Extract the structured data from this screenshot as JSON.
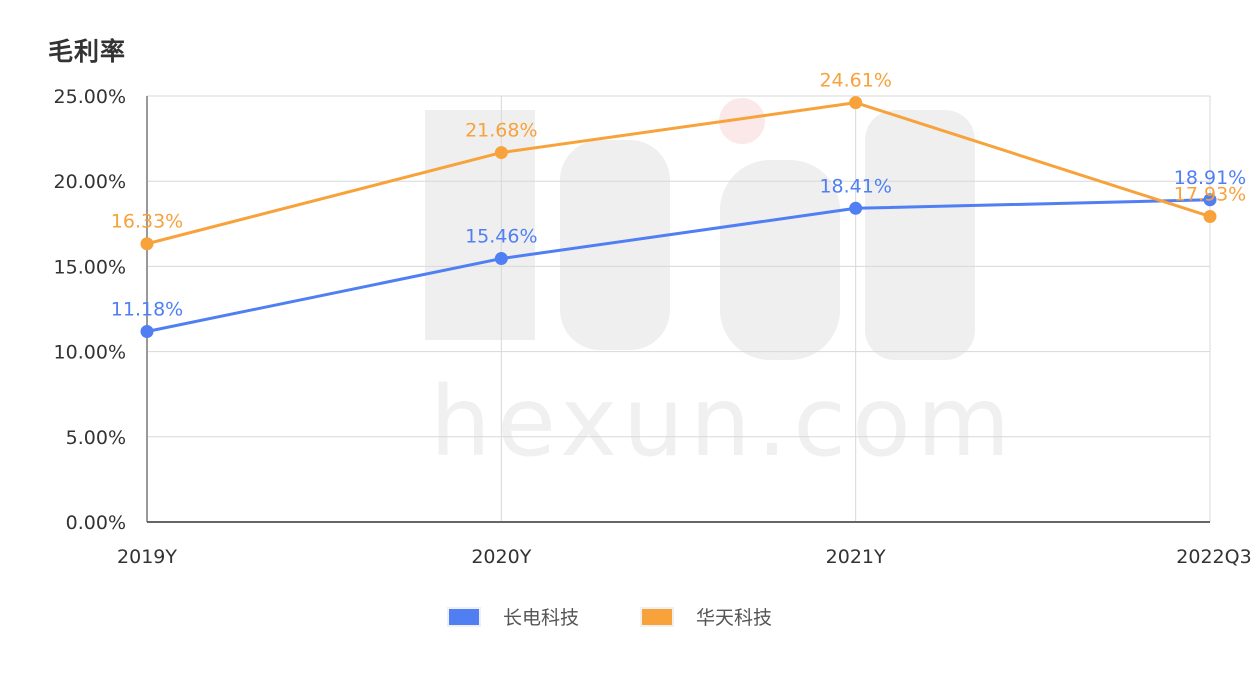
{
  "title": "毛利率",
  "colors": {
    "series1": "#4f7ff2",
    "series2": "#f7a23a",
    "grid": "#d8d8d8",
    "axis": "#666666",
    "tick_text": "#333333"
  },
  "watermark": {
    "text": "hexun.com"
  },
  "legend": [
    {
      "label": "长电科技",
      "color": "#4f7ff2"
    },
    {
      "label": "华天科技",
      "color": "#f7a23a"
    }
  ],
  "chart_data": {
    "type": "line",
    "title": "毛利率",
    "categories": [
      "2019Y",
      "2020Y",
      "2021Y",
      "2022Q3"
    ],
    "series": [
      {
        "name": "长电科技",
        "values": [
          11.18,
          15.46,
          18.41,
          18.91
        ],
        "labels": [
          "11.18%",
          "15.46%",
          "18.41%",
          "18.91%"
        ]
      },
      {
        "name": "华天科技",
        "values": [
          16.33,
          21.68,
          24.61,
          17.93
        ],
        "labels": [
          "16.33%",
          "21.68%",
          "24.61%",
          "17.93%"
        ]
      }
    ],
    "xlabel": "",
    "ylabel": "",
    "ylim": [
      0,
      25
    ],
    "yticks": [
      "0.00%",
      "5.00%",
      "10.00%",
      "15.00%",
      "20.00%",
      "25.00%"
    ],
    "grid": true,
    "legend_position": "bottom"
  }
}
